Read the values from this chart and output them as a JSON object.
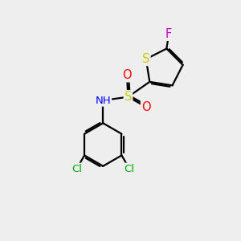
{
  "bg_color": "#eeeeee",
  "bond_color": "#000000",
  "bond_width": 1.6,
  "atom_colors": {
    "S_thiophene": "#cccc00",
    "S_sulfonyl": "#cccc00",
    "O": "#ff0000",
    "N": "#0000ff",
    "F": "#cc00cc",
    "Cl": "#00aa00",
    "C": "#000000"
  },
  "font_size": 9.5,
  "fig_size": [
    3.0,
    3.0
  ],
  "dpi": 100,
  "xlim": [
    0,
    10
  ],
  "ylim": [
    0,
    10
  ]
}
